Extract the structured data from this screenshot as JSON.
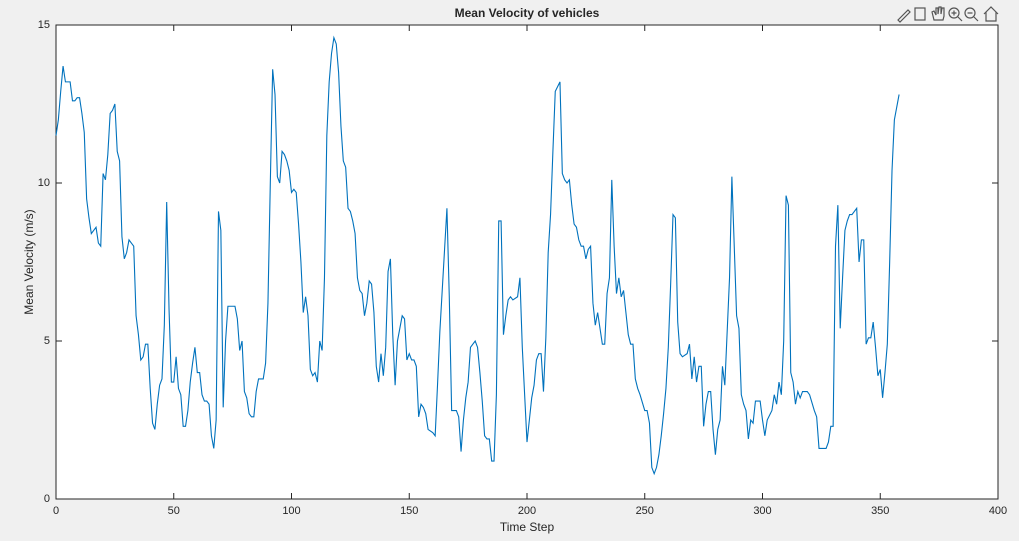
{
  "chart_data": {
    "type": "line",
    "title": "Mean Velocity of vehicles",
    "xlabel": "Time Step",
    "ylabel": "Mean Velocity (m/s)",
    "xlim": [
      0,
      400
    ],
    "xticks": [
      0,
      50,
      100,
      150,
      200,
      250,
      300,
      350,
      400
    ],
    "ylim": [
      0,
      15
    ],
    "yticks": [
      0,
      5,
      10,
      15
    ],
    "grid": false,
    "x": [
      0,
      1,
      2,
      3,
      4,
      5,
      6,
      7,
      8,
      9,
      10,
      11,
      12,
      13,
      14,
      15,
      16,
      17,
      18,
      19,
      20,
      21,
      22,
      23,
      24,
      25,
      26,
      27,
      28,
      29,
      30,
      31,
      32,
      33,
      34,
      35,
      36,
      37,
      38,
      39,
      40,
      41,
      42,
      43,
      44,
      45,
      46,
      47,
      48,
      49,
      50,
      51,
      52,
      53,
      54,
      55,
      56,
      57,
      58,
      59,
      60,
      61,
      62,
      63,
      64,
      65,
      66,
      67,
      68,
      69,
      70,
      71,
      72,
      73,
      74,
      75,
      76,
      77,
      78,
      79,
      80,
      81,
      82,
      83,
      84,
      85,
      86,
      87,
      88,
      89,
      90,
      91,
      92,
      93,
      94,
      95,
      96,
      97,
      98,
      99,
      100,
      101,
      102,
      103,
      104,
      105,
      106,
      107,
      108,
      109,
      110,
      111,
      112,
      113,
      114,
      115,
      116,
      117,
      118,
      119,
      120,
      121,
      122,
      123,
      124,
      125,
      126,
      127,
      128,
      129,
      130,
      131,
      132,
      133,
      134,
      135,
      136,
      137,
      138,
      139,
      140,
      141,
      142,
      143,
      144,
      145,
      146,
      147,
      148,
      149,
      150,
      151,
      152,
      153,
      154,
      155,
      156,
      157,
      158,
      160,
      161,
      162,
      163,
      164,
      165,
      166,
      167,
      168,
      169,
      170,
      171,
      172,
      173,
      174,
      175,
      176,
      178,
      179,
      180,
      181,
      182,
      183,
      184,
      185,
      186,
      187,
      188,
      189,
      190,
      191,
      192,
      193,
      194,
      196,
      197,
      198,
      199,
      200,
      201,
      202,
      203,
      204,
      205,
      206,
      207,
      208,
      209,
      210,
      211,
      212,
      214,
      215,
      216,
      217,
      218,
      219,
      220,
      221,
      222,
      223,
      224,
      225,
      226,
      227,
      228,
      229,
      230,
      232,
      233,
      234,
      235,
      236,
      237,
      238,
      239,
      240,
      241,
      242,
      243,
      244,
      245,
      246,
      247,
      248,
      250,
      251,
      252,
      253,
      254,
      255,
      256,
      257,
      258,
      259,
      260,
      261,
      262,
      263,
      264,
      265,
      266,
      268,
      269,
      270,
      271,
      272,
      273,
      274,
      275,
      276,
      277,
      278,
      279,
      280,
      281,
      282,
      283,
      284,
      286,
      287,
      288,
      289,
      290,
      291,
      292,
      293,
      294,
      295,
      296,
      297,
      298,
      299,
      300,
      301,
      302,
      304,
      305,
      306,
      307,
      308,
      309,
      310,
      311,
      312,
      313,
      314,
      315,
      316,
      317,
      318,
      319,
      320,
      322,
      323,
      324,
      325,
      326,
      327,
      328,
      329,
      330,
      331,
      332,
      333,
      334,
      335,
      336,
      337,
      338,
      340,
      341,
      342,
      343,
      344,
      345,
      346,
      347,
      348,
      349,
      350,
      351,
      352,
      353,
      354,
      355,
      356,
      358
    ],
    "series": [
      {
        "color": "#0072bd",
        "values": [
          11.5,
          12.0,
          12.9,
          13.7,
          13.2,
          13.2,
          13.2,
          12.6,
          12.6,
          12.7,
          12.7,
          12.2,
          11.6,
          9.5,
          8.9,
          8.4,
          8.5,
          8.6,
          8.1,
          8.0,
          10.3,
          10.1,
          10.9,
          12.2,
          12.3,
          12.5,
          11.0,
          10.7,
          8.3,
          7.6,
          7.8,
          8.2,
          8.1,
          8.0,
          5.8,
          5.2,
          4.4,
          4.5,
          4.9,
          4.9,
          3.5,
          2.4,
          2.2,
          3.0,
          3.6,
          3.8,
          5.5,
          9.4,
          6.0,
          3.7,
          3.7,
          4.5,
          3.5,
          3.3,
          2.3,
          2.3,
          2.8,
          3.7,
          4.3,
          4.8,
          4.0,
          4.0,
          3.3,
          3.1,
          3.1,
          3.0,
          2.0,
          1.6,
          2.5,
          9.1,
          8.5,
          2.9,
          5.0,
          6.1,
          6.1,
          6.1,
          6.1,
          5.7,
          4.7,
          5.0,
          3.4,
          3.2,
          2.7,
          2.6,
          2.6,
          3.4,
          3.8,
          3.8,
          3.8,
          4.3,
          6.2,
          10.0,
          13.6,
          12.8,
          10.2,
          10.0,
          11.0,
          10.9,
          10.7,
          10.4,
          9.7,
          9.8,
          9.7,
          8.7,
          7.5,
          5.9,
          6.4,
          5.8,
          4.1,
          3.9,
          4.0,
          3.7,
          5.0,
          4.7,
          7.0,
          11.5,
          13.2,
          14.1,
          14.6,
          14.4,
          13.5,
          11.8,
          10.7,
          10.5,
          9.2,
          9.1,
          8.8,
          8.4,
          7.0,
          6.6,
          6.5,
          5.8,
          6.2,
          6.9,
          6.8,
          5.9,
          4.2,
          3.7,
          4.6,
          3.9,
          4.8,
          7.2,
          7.6,
          5.2,
          3.6,
          5.0,
          5.4,
          5.8,
          5.7,
          4.4,
          4.6,
          4.4,
          4.4,
          4.2,
          2.6,
          3.0,
          2.9,
          2.7,
          2.2,
          2.1,
          2.0,
          3.6,
          5.3,
          6.6,
          7.9,
          9.2,
          6.4,
          2.8,
          2.8,
          2.8,
          2.6,
          1.5,
          2.5,
          3.2,
          3.7,
          4.8,
          5.0,
          4.8,
          4.0,
          3.1,
          2.0,
          1.9,
          1.9,
          1.2,
          1.2,
          3.3,
          8.8,
          8.8,
          5.2,
          5.8,
          6.3,
          6.4,
          6.3,
          6.4,
          7.0,
          4.8,
          3.3,
          1.8,
          2.5,
          3.2,
          3.6,
          4.4,
          4.6,
          4.6,
          3.4,
          5.1,
          7.8,
          9.0,
          11.0,
          12.9,
          13.2,
          10.3,
          10.1,
          10.0,
          10.1,
          9.3,
          8.7,
          8.6,
          8.2,
          8.0,
          8.0,
          7.6,
          7.9,
          8.0,
          6.2,
          5.5,
          5.9,
          4.9,
          4.9,
          6.5,
          7.0,
          10.1,
          8.0,
          6.5,
          7.0,
          6.4,
          6.6,
          5.9,
          5.2,
          4.9,
          4.9,
          3.8,
          3.5,
          3.3,
          2.8,
          2.8,
          2.4,
          1.0,
          0.8,
          1.0,
          1.4,
          2.0,
          2.7,
          3.5,
          4.8,
          6.8,
          9.0,
          8.9,
          5.6,
          4.6,
          4.5,
          4.6,
          4.9,
          3.8,
          4.5,
          3.7,
          4.2,
          4.2,
          2.3,
          3.0,
          3.4,
          3.4,
          2.2,
          1.4,
          2.2,
          2.5,
          4.2,
          3.6,
          7.0,
          10.2,
          8.0,
          5.8,
          5.4,
          3.3,
          3.0,
          2.8,
          1.9,
          2.5,
          2.4,
          3.1,
          3.1,
          3.1,
          2.5,
          2.0,
          2.5,
          2.8,
          3.3,
          3.0,
          3.7,
          3.3,
          5.0,
          9.6,
          9.3,
          4.0,
          3.7,
          3.0,
          3.4,
          3.2,
          3.4,
          3.4,
          3.4,
          3.3,
          2.8,
          2.6,
          1.6,
          1.6,
          1.6,
          1.6,
          1.8,
          2.3,
          2.3,
          8.0,
          9.3,
          5.4,
          7.0,
          8.5,
          8.8,
          9.0,
          9.0,
          9.2,
          7.5,
          8.2,
          8.2,
          4.9,
          5.1,
          5.1,
          5.6,
          4.8,
          3.9,
          4.1,
          3.2,
          4.0,
          4.9,
          7.5,
          10.4,
          12.0,
          12.8
        ]
      }
    ]
  }
}
